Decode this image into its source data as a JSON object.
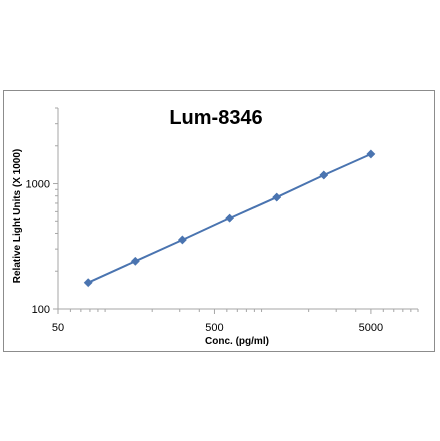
{
  "chart_data": {
    "type": "line",
    "title": "Lum-8346",
    "xlabel": "Conc. (pg/ml)",
    "ylabel": "Relative Light Units (X 1000)",
    "x_scale": "log",
    "y_scale": "log",
    "xlim": [
      50,
      10000
    ],
    "ylim": [
      100,
      4000
    ],
    "x_ticks": [
      "50",
      "500",
      "5000"
    ],
    "y_ticks": [
      "100",
      "1000"
    ],
    "grid": false,
    "legend": "none",
    "marker": "diamond",
    "series": [
      {
        "color": "#4a74b0",
        "x": [
          78,
          156,
          312,
          625,
          1250,
          2500,
          5000
        ],
        "y": [
          162,
          240,
          355,
          530,
          780,
          1170,
          1720
        ]
      }
    ]
  }
}
